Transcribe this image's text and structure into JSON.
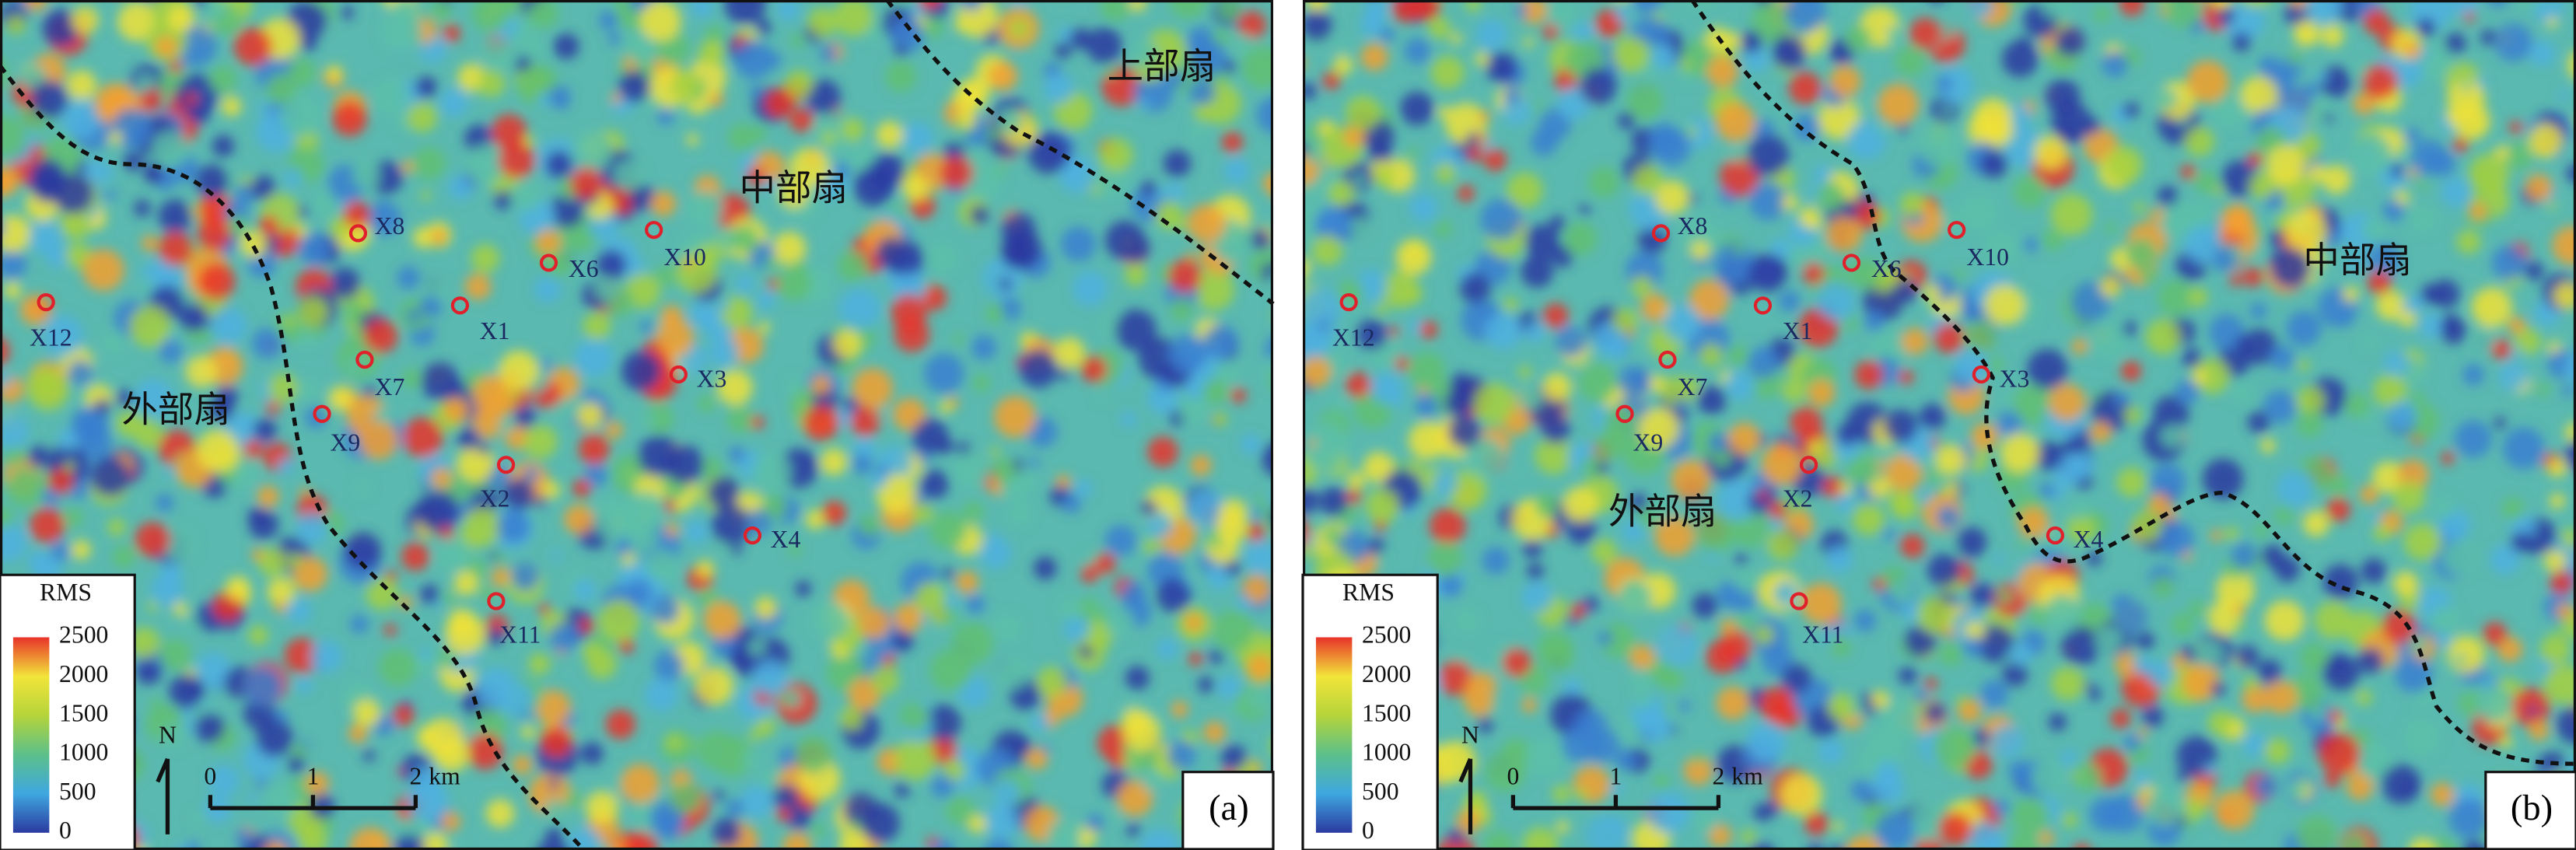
{
  "panels": [
    {
      "label": "(a)",
      "regions": [
        "中部扇",
        "上部扇",
        "外部扇"
      ],
      "wells": [
        "X8",
        "X6",
        "X10",
        "X1",
        "X12",
        "X7",
        "X3",
        "X9",
        "X2",
        "X4",
        "X11"
      ],
      "legend": {
        "title": "RMS",
        "ticks": [
          0,
          500,
          1000,
          1500,
          2000,
          2500
        ]
      },
      "north": "N",
      "scale": {
        "ticks": [
          0,
          1,
          2
        ],
        "unit": "km"
      }
    },
    {
      "label": "(b)",
      "regions": [
        "中部扇",
        "外部扇"
      ],
      "wells": [
        "X8",
        "X6",
        "X10",
        "X1",
        "X12",
        "X7",
        "X3",
        "X9",
        "X2",
        "X4",
        "X11"
      ],
      "legend": {
        "title": "RMS",
        "ticks": [
          0,
          500,
          1000,
          1500,
          2000,
          2500
        ]
      },
      "north": "N",
      "scale": {
        "ticks": [
          0,
          1,
          2
        ],
        "unit": "km"
      }
    }
  ]
}
